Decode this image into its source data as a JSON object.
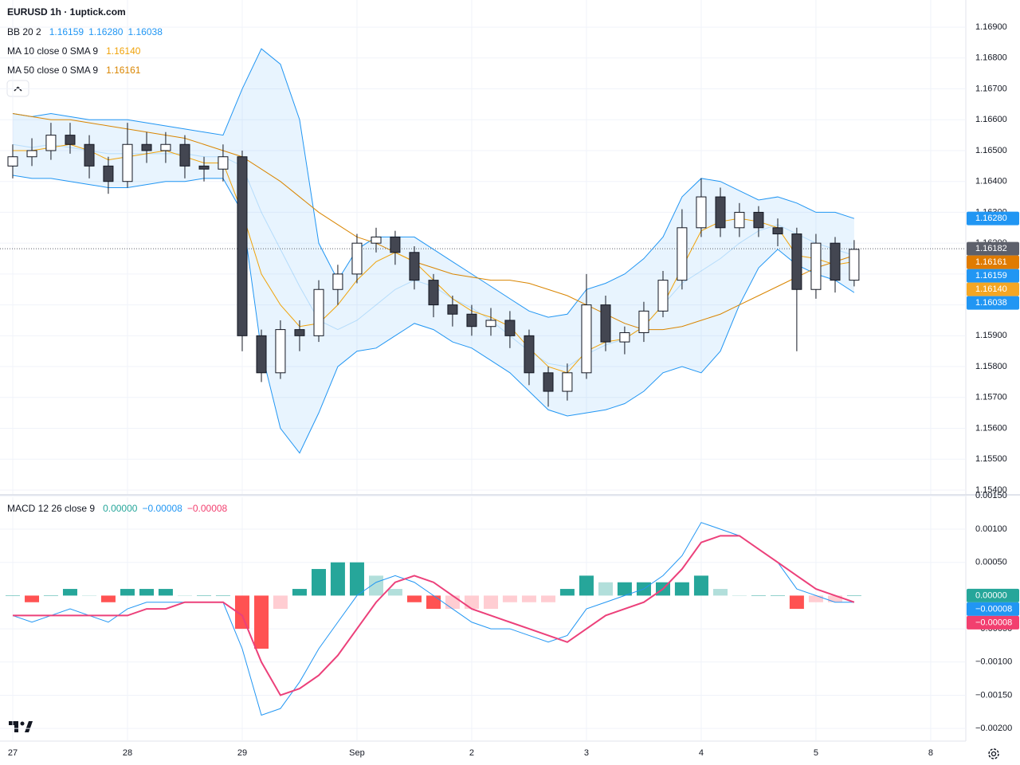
{
  "chart_data": {
    "type": "candlestick",
    "title": "EURUSD 1h · 1uptick.com",
    "legend": [
      {
        "label": "BB 20 2",
        "values": [
          {
            "text": "1.16159",
            "color": "#2196f3"
          },
          {
            "text": "1.16280",
            "color": "#2196f3"
          },
          {
            "text": "1.16038",
            "color": "#2196f3"
          }
        ]
      },
      {
        "label": "MA 10 close 0 SMA 9",
        "values": [
          {
            "text": "1.16140",
            "color": "#f0a30a"
          }
        ]
      },
      {
        "label": "MA 50 close 0 SMA 9",
        "values": [
          {
            "text": "1.16161",
            "color": "#d98500"
          }
        ]
      }
    ],
    "x": [
      0,
      0.167,
      0.333,
      0.5,
      0.667,
      0.833,
      1,
      1.167,
      1.333,
      1.5,
      1.667,
      1.833,
      2,
      2.167,
      2.333,
      2.5,
      2.667,
      2.833,
      3,
      3.167,
      3.333,
      3.5,
      3.667,
      3.833,
      4,
      4.167,
      4.333,
      4.5,
      4.667,
      4.833,
      5,
      5.167,
      5.333,
      5.5,
      5.667,
      5.833,
      6,
      6.167,
      6.333,
      6.5,
      6.667,
      6.833,
      7,
      7.167,
      7.333
    ],
    "xlim": [
      -0.111,
      8.306
    ],
    "xticks": [
      {
        "value": 0,
        "label": "27"
      },
      {
        "value": 1,
        "label": "28"
      },
      {
        "value": 2,
        "label": "29"
      },
      {
        "value": 3,
        "label": "Sep"
      },
      {
        "value": 4,
        "label": "2"
      },
      {
        "value": 5,
        "label": "3"
      },
      {
        "value": 6,
        "label": "4"
      },
      {
        "value": 7,
        "label": "5"
      },
      {
        "value": 8,
        "label": "8"
      }
    ],
    "ylim": [
      1.15387,
      1.16988
    ],
    "yticks": [
      {
        "value": 1.169,
        "label": "1.16900"
      },
      {
        "value": 1.168,
        "label": "1.16800"
      },
      {
        "value": 1.167,
        "label": "1.16700"
      },
      {
        "value": 1.166,
        "label": "1.16600"
      },
      {
        "value": 1.165,
        "label": "1.16500"
      },
      {
        "value": 1.164,
        "label": "1.16400"
      },
      {
        "value": 1.163,
        "label": "1.16300"
      },
      {
        "value": 1.162,
        "label": "1.16200"
      },
      {
        "value": 1.161,
        "label": "1.16100"
      },
      {
        "value": 1.16,
        "label": "1.16000"
      },
      {
        "value": 1.159,
        "label": "1.15900"
      },
      {
        "value": 1.158,
        "label": "1.15800"
      },
      {
        "value": 1.157,
        "label": "1.15700"
      },
      {
        "value": 1.156,
        "label": "1.15600"
      },
      {
        "value": 1.155,
        "label": "1.15500"
      },
      {
        "value": 1.154,
        "label": "1.15400"
      }
    ],
    "open": [
      1.1645,
      1.1648,
      1.165,
      1.1655,
      1.1652,
      1.1645,
      1.164,
      1.1652,
      1.165,
      1.1652,
      1.1645,
      1.1644,
      1.1648,
      1.159,
      1.1578,
      1.1592,
      1.159,
      1.1605,
      1.161,
      1.162,
      1.1622,
      1.1617,
      1.1608,
      1.16,
      1.1597,
      1.1593,
      1.1595,
      1.159,
      1.1578,
      1.1572,
      1.1578,
      1.16,
      1.1588,
      1.1591,
      1.1598,
      1.1608,
      1.1625,
      1.1635,
      1.1625,
      1.163,
      1.1625,
      1.1623,
      1.1605,
      1.162,
      1.1608
    ],
    "high": [
      1.1652,
      1.1654,
      1.1659,
      1.1659,
      1.1655,
      1.1648,
      1.1659,
      1.1656,
      1.1656,
      1.1655,
      1.1648,
      1.1652,
      1.165,
      1.1592,
      1.1595,
      1.1595,
      1.1608,
      1.1613,
      1.1623,
      1.1625,
      1.1624,
      1.1619,
      1.161,
      1.1603,
      1.16,
      1.1599,
      1.1598,
      1.1592,
      1.158,
      1.1581,
      1.161,
      1.1603,
      1.1593,
      1.1601,
      1.1611,
      1.1631,
      1.1641,
      1.1638,
      1.1633,
      1.1632,
      1.1628,
      1.1625,
      1.1623,
      1.1622,
      1.1621
    ],
    "low": [
      1.1641,
      1.1645,
      1.1647,
      1.1649,
      1.1641,
      1.1636,
      1.1638,
      1.1646,
      1.1646,
      1.1641,
      1.164,
      1.164,
      1.1585,
      1.1575,
      1.1576,
      1.1585,
      1.1588,
      1.16,
      1.1607,
      1.1617,
      1.1613,
      1.1605,
      1.1596,
      1.1593,
      1.159,
      1.159,
      1.1586,
      1.1574,
      1.1567,
      1.1569,
      1.1576,
      1.1585,
      1.1584,
      1.1588,
      1.1596,
      1.1605,
      1.1622,
      1.1622,
      1.1622,
      1.1622,
      1.1619,
      1.1585,
      1.1602,
      1.1604,
      1.1606
    ],
    "close": [
      1.1648,
      1.165,
      1.1655,
      1.1652,
      1.1645,
      1.164,
      1.1652,
      1.165,
      1.1652,
      1.1645,
      1.1644,
      1.1648,
      1.159,
      1.1578,
      1.1592,
      1.159,
      1.1605,
      1.161,
      1.162,
      1.1622,
      1.1617,
      1.1608,
      1.16,
      1.1597,
      1.1593,
      1.1595,
      1.159,
      1.1578,
      1.1572,
      1.1578,
      1.16,
      1.1588,
      1.1591,
      1.1598,
      1.1608,
      1.1625,
      1.1635,
      1.1625,
      1.163,
      1.1625,
      1.1623,
      1.1605,
      1.162,
      1.1608,
      1.1618
    ],
    "colors": {
      "up": "#ffffff",
      "down": "#434651",
      "outline": "#131722"
    },
    "bb": {
      "upper": [
        1.1662,
        1.1661,
        1.1662,
        1.1661,
        1.166,
        1.166,
        1.166,
        1.1659,
        1.1658,
        1.1657,
        1.1656,
        1.1655,
        1.167,
        1.1683,
        1.1678,
        1.166,
        1.162,
        1.1608,
        1.1618,
        1.1622,
        1.1622,
        1.1622,
        1.1618,
        1.1614,
        1.161,
        1.1606,
        1.1602,
        1.1598,
        1.1596,
        1.1597,
        1.1605,
        1.1607,
        1.161,
        1.1615,
        1.1622,
        1.1635,
        1.1641,
        1.164,
        1.1637,
        1.1634,
        1.1635,
        1.1633,
        1.163,
        1.163,
        1.1628
      ],
      "basis": [
        1.1652,
        1.1651,
        1.1652,
        1.1651,
        1.165,
        1.1649,
        1.1649,
        1.1649,
        1.1649,
        1.1649,
        1.1648,
        1.1648,
        1.1645,
        1.163,
        1.1618,
        1.1606,
        1.1595,
        1.1592,
        1.1595,
        1.16,
        1.1605,
        1.1608,
        1.1606,
        1.1602,
        1.1599,
        1.1595,
        1.159,
        1.1585,
        1.1581,
        1.158,
        1.1584,
        1.1587,
        1.1589,
        1.1593,
        1.16,
        1.1607,
        1.1611,
        1.1615,
        1.162,
        1.1624,
        1.1626,
        1.1623,
        1.162,
        1.1618,
        1.1616
      ],
      "lower": [
        1.1642,
        1.1641,
        1.1641,
        1.164,
        1.1639,
        1.1638,
        1.1638,
        1.1639,
        1.164,
        1.164,
        1.1641,
        1.1641,
        1.163,
        1.1585,
        1.156,
        1.1552,
        1.1565,
        1.158,
        1.1585,
        1.1586,
        1.159,
        1.1594,
        1.1592,
        1.1588,
        1.1586,
        1.1582,
        1.1578,
        1.1572,
        1.1566,
        1.1564,
        1.1565,
        1.1566,
        1.1568,
        1.1572,
        1.1578,
        1.158,
        1.1578,
        1.1585,
        1.16,
        1.1612,
        1.1618,
        1.1613,
        1.161,
        1.1608,
        1.1604
      ],
      "color": "#2196f3",
      "fill": "rgba(33,150,243,0.1)",
      "basis_color": "rgba(33,150,243,0.25)"
    },
    "ma10": {
      "values": [
        1.165,
        1.165,
        1.1651,
        1.1652,
        1.165,
        1.1647,
        1.1648,
        1.1649,
        1.165,
        1.1648,
        1.1646,
        1.1646,
        1.163,
        1.161,
        1.16,
        1.1593,
        1.1594,
        1.16,
        1.1608,
        1.1614,
        1.1617,
        1.1614,
        1.1608,
        1.1602,
        1.1598,
        1.1596,
        1.1593,
        1.1586,
        1.158,
        1.1578,
        1.1585,
        1.1588,
        1.1589,
        1.1593,
        1.16,
        1.1612,
        1.1624,
        1.1627,
        1.1628,
        1.1627,
        1.1625,
        1.1616,
        1.1615,
        1.1613,
        1.1614
      ],
      "color": "#f0a30a"
    },
    "ma50": {
      "values": [
        1.1662,
        1.1661,
        1.166,
        1.166,
        1.1659,
        1.1658,
        1.1657,
        1.1656,
        1.1655,
        1.1654,
        1.1652,
        1.165,
        1.1648,
        1.1644,
        1.164,
        1.1635,
        1.163,
        1.1626,
        1.1622,
        1.162,
        1.1617,
        1.1614,
        1.1612,
        1.161,
        1.1609,
        1.1608,
        1.1608,
        1.1607,
        1.1605,
        1.1603,
        1.16,
        1.1597,
        1.1594,
        1.1592,
        1.1592,
        1.1593,
        1.1595,
        1.1597,
        1.16,
        1.1603,
        1.1606,
        1.1609,
        1.1612,
        1.1614,
        1.1616
      ],
      "color": "#d98500"
    },
    "last_price": {
      "value": 1.16182,
      "label": "1.16182",
      "color": "#5d606b"
    },
    "badges": [
      {
        "value": 1.1628,
        "label": "1.16280",
        "color": "#2196f3"
      },
      {
        "value": 1.16161,
        "label": "1.16161",
        "color": "#e07b00"
      },
      {
        "value": 1.16159,
        "label": "1.16159",
        "color": "#2196f3"
      },
      {
        "value": 1.1614,
        "label": "1.16140",
        "color": "#f5a623"
      },
      {
        "value": 1.16038,
        "label": "1.16038",
        "color": "#2196f3"
      }
    ],
    "macd": {
      "legend": {
        "label": "MACD 12 26 close 9",
        "values": [
          {
            "text": "0.00000",
            "color": "#26a69a"
          },
          {
            "text": "−0.00008",
            "color": "#2196f3"
          },
          {
            "text": "−0.00008",
            "color": "#f23f6f"
          }
        ]
      },
      "ylim": [
        -0.00219,
        0.00148
      ],
      "yticks": [
        {
          "value": 0.0015,
          "label": "0.00150"
        },
        {
          "value": 0.001,
          "label": "0.00100"
        },
        {
          "value": 0.0005,
          "label": "0.00050"
        },
        {
          "value": -0.0005,
          "label": "−0.00050"
        },
        {
          "value": -0.001,
          "label": "−0.00100"
        },
        {
          "value": -0.0015,
          "label": "−0.00150"
        },
        {
          "value": -0.002,
          "label": "−0.00200"
        }
      ],
      "histogram": {
        "values": [
          0,
          -0.0001,
          0,
          0.0001,
          0,
          -0.0001,
          0.0001,
          0.0001,
          0.0001,
          0,
          0,
          0,
          -0.0005,
          -0.0008,
          -0.0002,
          0.0001,
          0.0004,
          0.0005,
          0.0005,
          0.0003,
          0.0001,
          -0.0001,
          -0.0002,
          -0.0002,
          -0.0002,
          -0.0002,
          -0.0001,
          -0.0001,
          -0.0001,
          0.0001,
          0.0003,
          0.0002,
          0.0002,
          0.0002,
          0.0002,
          0.0002,
          0.0003,
          0.0001,
          0,
          0,
          0,
          -0.0002,
          -0.0001,
          -0.0001,
          0
        ],
        "colors": [
          "#26a69a",
          "#b2dfdb",
          "#ff5252",
          "#ffcdd2"
        ]
      },
      "macd": {
        "values": [
          -0.0003,
          -0.0004,
          -0.0003,
          -0.0002,
          -0.0003,
          -0.0004,
          -0.0002,
          -0.0001,
          -0.0001,
          -0.0001,
          -0.0001,
          -0.0001,
          -0.0008,
          -0.0018,
          -0.0017,
          -0.0013,
          -0.0008,
          -0.0004,
          0,
          0.0002,
          0.0003,
          0.0002,
          0,
          -0.0002,
          -0.0004,
          -0.0005,
          -0.0005,
          -0.0006,
          -0.0007,
          -0.0006,
          -0.0002,
          -0.0001,
          0,
          0.0001,
          0.0003,
          0.0006,
          0.0011,
          0.001,
          0.0009,
          0.0007,
          0.0005,
          0.0001,
          0,
          -0.0001,
          -0.0001
        ],
        "color": "#2196f3"
      },
      "signal": {
        "values": [
          -0.0003,
          -0.0003,
          -0.0003,
          -0.0003,
          -0.0003,
          -0.0003,
          -0.0003,
          -0.0002,
          -0.0002,
          -0.0001,
          -0.0001,
          -0.0001,
          -0.0003,
          -0.001,
          -0.0015,
          -0.0014,
          -0.0012,
          -0.0009,
          -0.0005,
          -0.0001,
          0.0002,
          0.0003,
          0.0002,
          0,
          -0.0002,
          -0.0003,
          -0.0004,
          -0.0005,
          -0.0006,
          -0.0007,
          -0.0005,
          -0.0003,
          -0.0002,
          -0.0001,
          0.0001,
          0.0004,
          0.0008,
          0.0009,
          0.0009,
          0.0007,
          0.0005,
          0.0003,
          0.0001,
          0,
          -0.0001
        ],
        "color": "#ec407a"
      },
      "badges": [
        {
          "value": 0,
          "label": "0.00000",
          "color": "#26a69a"
        },
        {
          "value": -8e-05,
          "label": "−0.00008",
          "color": "#2196f3"
        },
        {
          "value": -8e-05,
          "label": "−0.00008",
          "color": "#f23f6f"
        }
      ]
    }
  }
}
